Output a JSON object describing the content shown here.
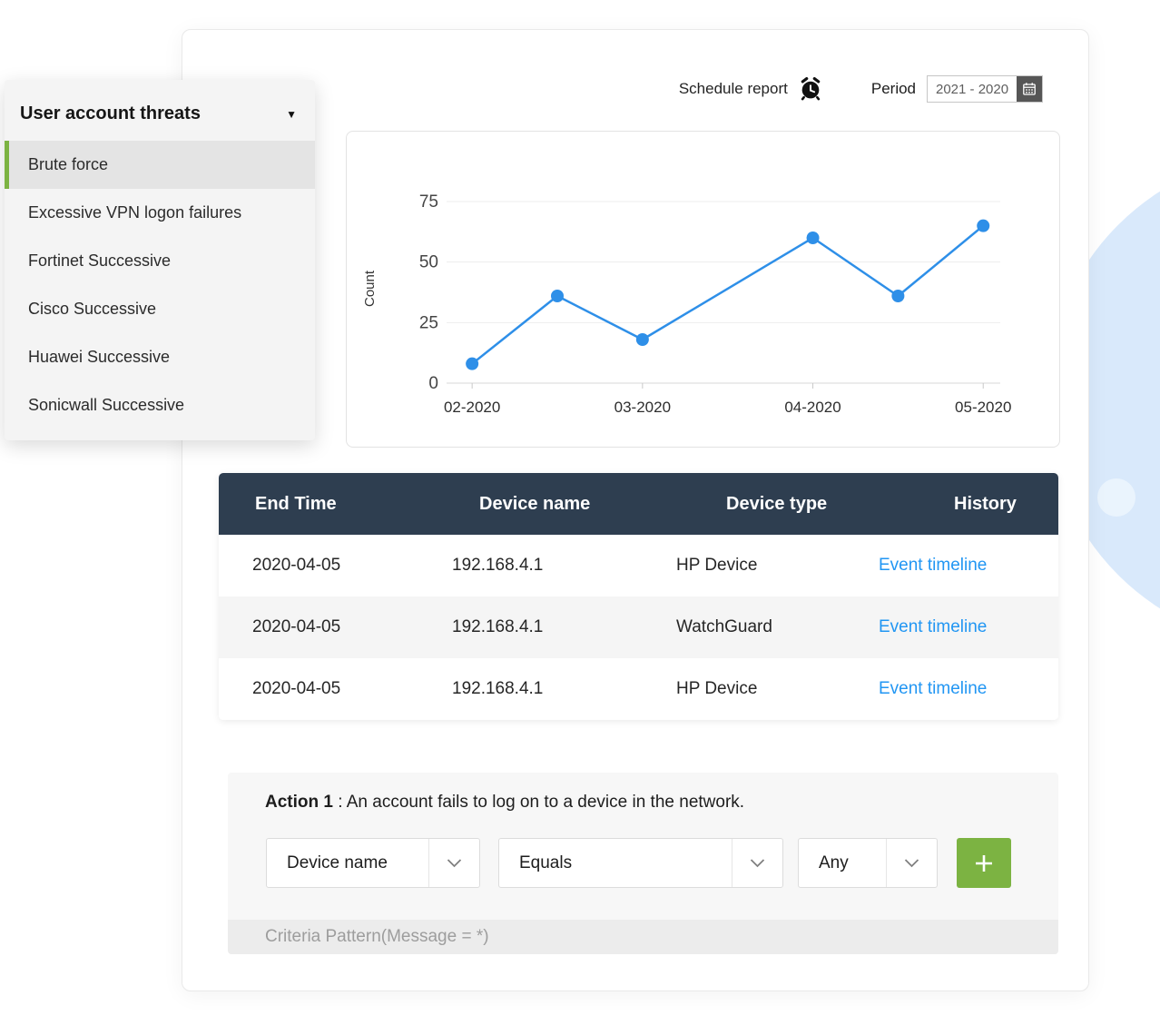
{
  "background": {
    "decor_circle_color": "#d9e9fb",
    "decor_dot_color": "#eaf4fd"
  },
  "sidebar": {
    "title": "User account threats",
    "items": [
      {
        "label": "Brute force",
        "selected": true
      },
      {
        "label": "Excessive VPN logon failures",
        "selected": false
      },
      {
        "label": "Fortinet Successive",
        "selected": false
      },
      {
        "label": "Cisco Successive",
        "selected": false
      },
      {
        "label": "Huawei Successive",
        "selected": false
      },
      {
        "label": "Sonicwall Successive",
        "selected": false
      }
    ]
  },
  "topbar": {
    "schedule_report": "Schedule report",
    "period_label": "Period",
    "period_value": "2021 - 2020"
  },
  "chart_data": {
    "type": "line",
    "title": "",
    "xlabel": "",
    "ylabel": "Count",
    "x_ticks": [
      {
        "value": 2,
        "label": "02-2020"
      },
      {
        "value": 3,
        "label": "03-2020"
      },
      {
        "value": 4,
        "label": "04-2020"
      },
      {
        "value": 5,
        "label": "05-2020"
      }
    ],
    "y_ticks": [
      0,
      25,
      50,
      75
    ],
    "xlim": [
      1.85,
      5.1
    ],
    "ylim": [
      0,
      75
    ],
    "grid": "horizontal",
    "legend": "none",
    "line_color": "#2e8fe8",
    "point_radius": 7,
    "series": [
      {
        "name": "Count",
        "x": [
          2,
          2.5,
          3,
          4,
          4.5,
          5
        ],
        "y": [
          8,
          36,
          18,
          60,
          36,
          65
        ]
      }
    ]
  },
  "table": {
    "columns": [
      "End Time",
      "Device name",
      "Device type",
      "History"
    ],
    "rows": [
      {
        "end_time": "2020-04-05",
        "device_name": "192.168.4.1",
        "device_type": "HP Device",
        "history": "Event timeline"
      },
      {
        "end_time": "2020-04-05",
        "device_name": "192.168.4.1",
        "device_type": "WatchGuard",
        "history": "Event timeline"
      },
      {
        "end_time": "2020-04-05",
        "device_name": "192.168.4.1",
        "device_type": "HP Device",
        "history": "Event timeline"
      }
    ]
  },
  "action": {
    "label_bold": "Action 1",
    "label_rest": " : An account fails to log on to a device in the network.",
    "selects": [
      {
        "value": "Device name"
      },
      {
        "value": "Equals"
      },
      {
        "value": "Any"
      }
    ],
    "criteria_text": "Criteria Pattern(Message = *)"
  },
  "icons": {
    "schedule_report": "alarm-clock-icon",
    "period_picker": "calendar-icon",
    "sidebar_header": "caret-down-icon",
    "selects": "chevron-down-icon",
    "add_action": "plus-icon"
  },
  "colors": {
    "accent_green": "#7cb342",
    "link_blue": "#2196f3",
    "chart_line_blue": "#2e8fe8",
    "table_header_bg": "#2e3e50"
  }
}
